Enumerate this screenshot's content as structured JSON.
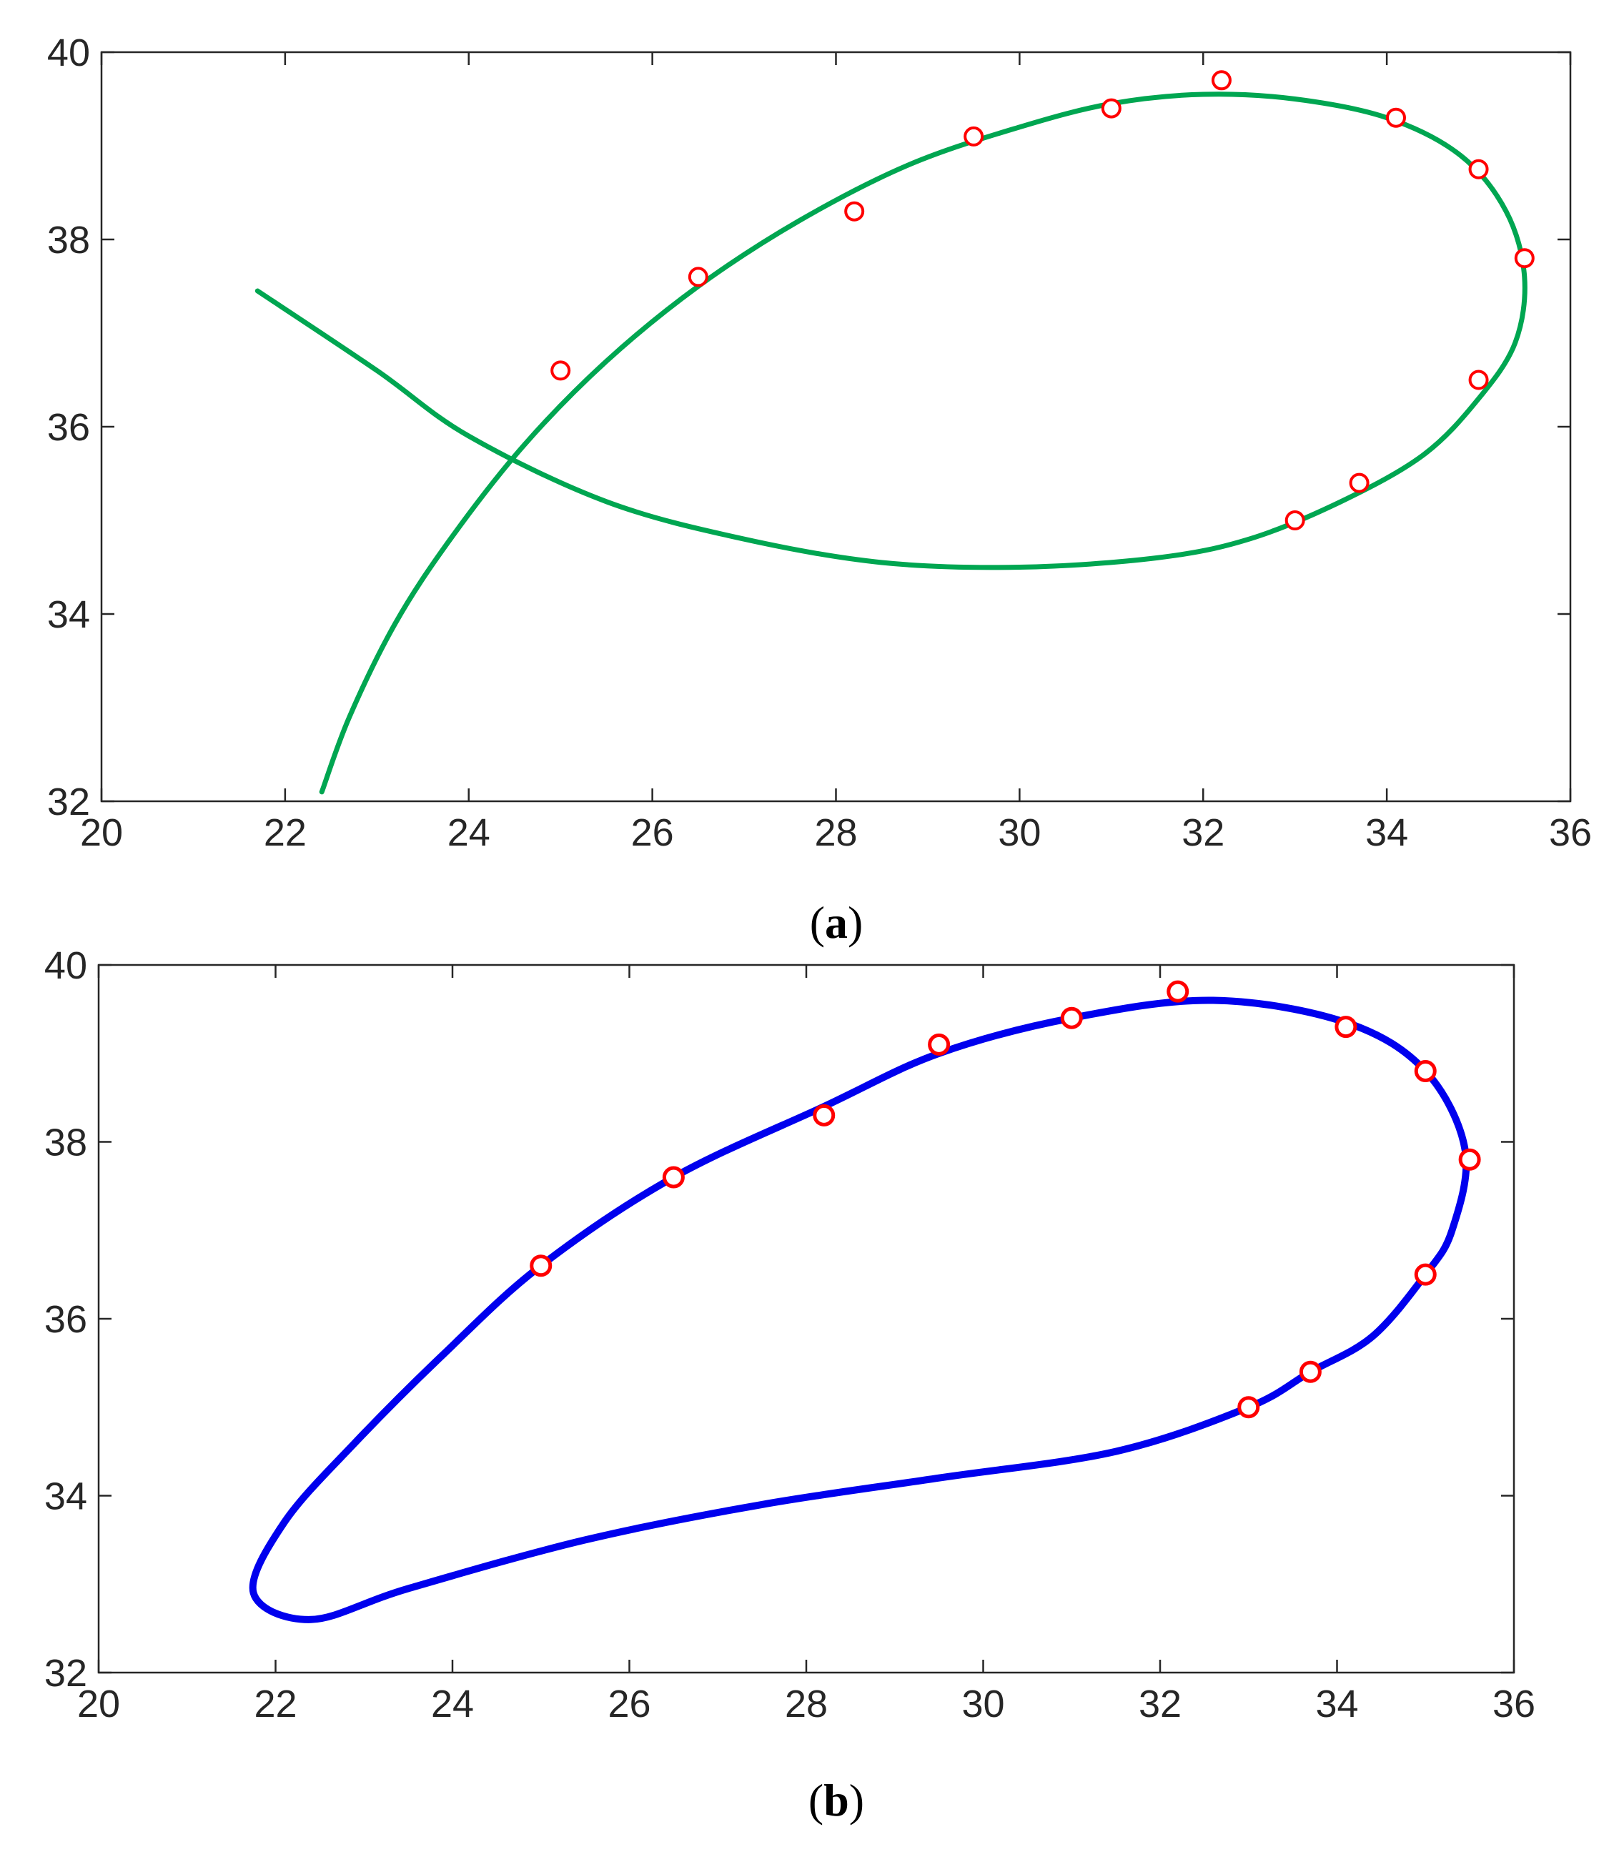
{
  "chart_data": [
    {
      "type": "line",
      "caption_letter": "a",
      "xlim": [
        20,
        36
      ],
      "ylim": [
        32,
        40
      ],
      "x_ticks": [
        "20",
        "22",
        "24",
        "26",
        "28",
        "30",
        "32",
        "34",
        "36"
      ],
      "y_ticks": [
        "32",
        "34",
        "36",
        "38",
        "40"
      ],
      "grid": false,
      "series": [
        {
          "kind": "curve",
          "color": "#00a651",
          "points": [
            [
              22.4,
              32.1
            ],
            [
              22.7,
              32.9
            ],
            [
              23.2,
              33.9
            ],
            [
              23.8,
              34.8
            ],
            [
              24.6,
              35.8
            ],
            [
              25.5,
              36.7
            ],
            [
              26.5,
              37.5
            ],
            [
              27.6,
              38.2
            ],
            [
              28.8,
              38.8
            ],
            [
              30,
              39.2
            ],
            [
              31,
              39.45
            ],
            [
              32,
              39.55
            ],
            [
              33,
              39.5
            ],
            [
              34,
              39.3
            ],
            [
              34.8,
              38.9
            ],
            [
              35.3,
              38.3
            ],
            [
              35.5,
              37.6
            ],
            [
              35.4,
              36.9
            ],
            [
              35,
              36.3
            ],
            [
              34.4,
              35.7
            ],
            [
              33.5,
              35.2
            ],
            [
              32.5,
              34.8
            ],
            [
              31.5,
              34.6
            ],
            [
              30,
              34.5
            ],
            [
              28.5,
              34.55
            ],
            [
              27,
              34.8
            ],
            [
              25.5,
              35.2
            ],
            [
              24,
              35.9
            ],
            [
              23,
              36.6
            ],
            [
              21.7,
              37.45
            ]
          ]
        },
        {
          "kind": "markers",
          "color": "#ff0000",
          "points": [
            [
              25,
              36.6
            ],
            [
              26.5,
              37.6
            ],
            [
              28.2,
              38.3
            ],
            [
              29.5,
              39.1
            ],
            [
              31,
              39.4
            ],
            [
              32.2,
              39.7
            ],
            [
              34.1,
              39.3
            ],
            [
              35,
              38.75
            ],
            [
              35.5,
              37.8
            ],
            [
              35,
              36.5
            ],
            [
              33.7,
              35.4
            ],
            [
              33,
              35
            ]
          ]
        }
      ]
    },
    {
      "type": "line",
      "caption_letter": "b",
      "xlim": [
        20,
        36
      ],
      "ylim": [
        32,
        40
      ],
      "x_ticks": [
        "20",
        "22",
        "24",
        "26",
        "28",
        "30",
        "32",
        "34",
        "36"
      ],
      "y_ticks": [
        "32",
        "34",
        "36",
        "38",
        "40"
      ],
      "grid": false,
      "series": [
        {
          "kind": "closed-curve",
          "color": "#0000ee",
          "points": [
            [
              25,
              36.6
            ],
            [
              26.5,
              37.6
            ],
            [
              28.2,
              38.4
            ],
            [
              29.5,
              39
            ],
            [
              31,
              39.4
            ],
            [
              32.6,
              39.6
            ],
            [
              34.1,
              39.35
            ],
            [
              35,
              38.8
            ],
            [
              35.45,
              37.9
            ],
            [
              35.3,
              37
            ],
            [
              35,
              36.5
            ],
            [
              34.4,
              35.8
            ],
            [
              33.7,
              35.4
            ],
            [
              33,
              35
            ],
            [
              31.5,
              34.5
            ],
            [
              29.5,
              34.2
            ],
            [
              27.5,
              33.9
            ],
            [
              25.5,
              33.5
            ],
            [
              23.5,
              32.95
            ],
            [
              22.4,
              32.6
            ],
            [
              21.75,
              32.9
            ],
            [
              22.1,
              33.7
            ],
            [
              22.9,
              34.6
            ],
            [
              23.9,
              35.6
            ]
          ]
        },
        {
          "kind": "markers",
          "color": "#ff0000",
          "points": [
            [
              25,
              36.6
            ],
            [
              26.5,
              37.6
            ],
            [
              28.2,
              38.3
            ],
            [
              29.5,
              39.1
            ],
            [
              31,
              39.4
            ],
            [
              32.2,
              39.7
            ],
            [
              34.1,
              39.3
            ],
            [
              35,
              38.8
            ],
            [
              35.5,
              37.8
            ],
            [
              35,
              36.5
            ],
            [
              33.7,
              35.4
            ],
            [
              33,
              35
            ]
          ]
        }
      ]
    }
  ]
}
